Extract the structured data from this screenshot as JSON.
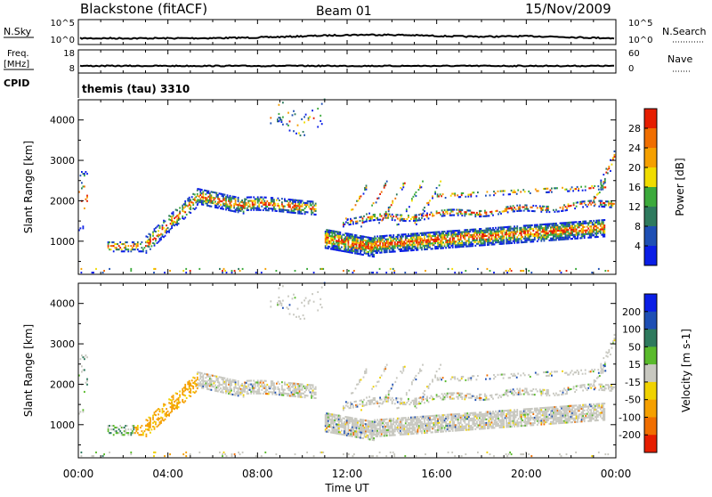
{
  "header": {
    "station": "Blackstone (fitACF)",
    "beam": "Beam 01",
    "date": "15/Nov/2009"
  },
  "noise_panel": {
    "left_label": "N.Sky",
    "right_label": "N.Search",
    "left_ticks": [
      "10^5",
      "10^0"
    ],
    "right_ticks": [
      "10^5",
      "10^0"
    ]
  },
  "freq_panel": {
    "left_label_1": "Freq.",
    "left_label_2": "[MHz]",
    "right_label": "Nave",
    "left_ticks": [
      "18",
      "8"
    ],
    "right_ticks": [
      "60",
      "0"
    ]
  },
  "cpid_panel": {
    "label": "CPID",
    "text": "themis (tau) 3310"
  },
  "colors": {
    "power": [
      "#0a1ee6",
      "#1e4fb4",
      "#2e7a5e",
      "#3caa3c",
      "#f0dc00",
      "#f5a000",
      "#f06e00",
      "#e61e00"
    ],
    "velocity": [
      "#0a1ee6",
      "#1e4fb4",
      "#2e7a5e",
      "#5aba2c",
      "#c8c8c0",
      "#f0d200",
      "#f5a000",
      "#f06e00",
      "#e61e00"
    ]
  },
  "chart_data": [
    {
      "type": "heatmap",
      "quantity": "Power",
      "ylabel": "Slant Range [km]",
      "ylim": [
        180,
        4500
      ],
      "xlim": [
        0,
        24
      ],
      "yticks": [
        "1000",
        "2000",
        "3000",
        "4000"
      ],
      "colorbar_label": "Power [dB]",
      "colorbar_ticks": [
        "4",
        "8",
        "12",
        "16",
        "20",
        "24",
        "28"
      ]
    },
    {
      "type": "heatmap",
      "quantity": "Velocity",
      "ylabel": "Slant Range [km]",
      "ylim": [
        180,
        4500
      ],
      "xlim": [
        0,
        24
      ],
      "yticks": [
        "1000",
        "2000",
        "3000",
        "4000"
      ],
      "xticks": [
        "00:00",
        "04:00",
        "08:00",
        "12:00",
        "16:00",
        "20:00",
        "00:00"
      ],
      "xlabel": "Time UT",
      "colorbar_label": "Velocity [m s-1]",
      "colorbar_ticks": [
        "200",
        "100",
        "50",
        "15",
        "-15",
        "-50",
        "-100",
        "-200"
      ]
    }
  ]
}
